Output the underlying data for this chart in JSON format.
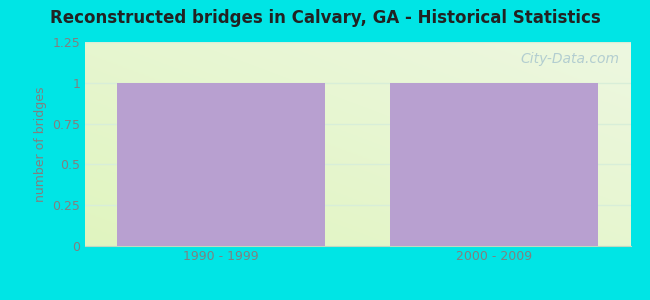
{
  "title": "Reconstructed bridges in Calvary, GA - Historical Statistics",
  "categories": [
    "1990 - 1999",
    "2000 - 2009"
  ],
  "values": [
    1,
    1
  ],
  "bar_color": "#b8a0d0",
  "background_color": "#00e5e5",
  "plot_bg_color": "#e8f5e0",
  "ylabel": "number of bridges",
  "ylabel_color": "#808080",
  "tick_label_color": "#808080",
  "xtick_label_color": "#808080",
  "title_color": "#222222",
  "ylim": [
    0,
    1.25
  ],
  "yticks": [
    0,
    0.25,
    0.5,
    0.75,
    1,
    1.25
  ],
  "grid_color": "#d8eed8",
  "watermark": "City-Data.com",
  "bar_width": 0.38,
  "x_positions": [
    0.25,
    0.75
  ],
  "xlim": [
    0,
    1
  ]
}
